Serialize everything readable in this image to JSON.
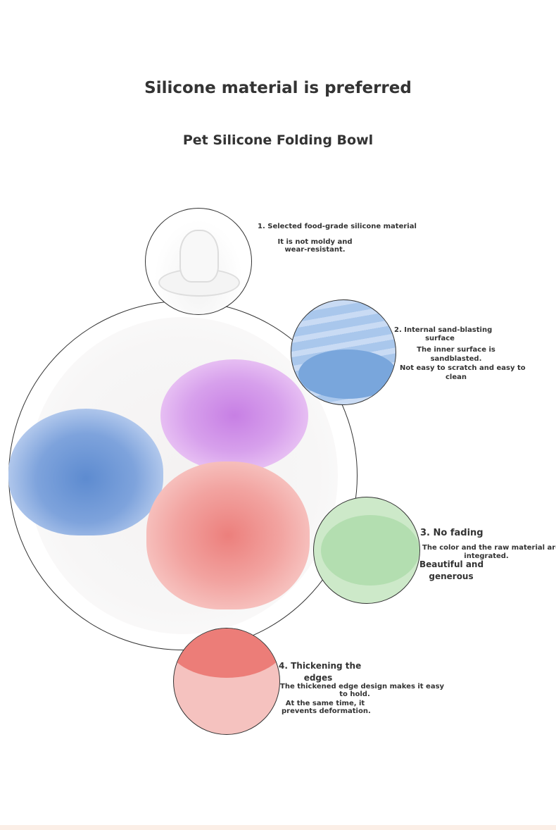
{
  "header": {
    "title": "Silicone material is preferred",
    "subtitle": "Pet Silicone Folding Bowl"
  },
  "features": [
    {
      "title": "1. Selected food-grade silicone material",
      "desc": [
        "It is not moldy and",
        "wear-resistant."
      ],
      "color": "#e8ecef"
    },
    {
      "title": [
        "2. Internal sand-blasting",
        "surface"
      ],
      "desc": [
        "The inner surface is",
        "sandblasted.",
        "Not easy to scratch and easy to",
        "clean"
      ],
      "color": "#8fb4e0"
    },
    {
      "title": "3. No fading",
      "desc": [
        "The color and the raw material are",
        "integrated.",
        "Beautiful and",
        "generous"
      ],
      "color": "#bfe3bd"
    },
    {
      "title": [
        "4. Thickening the",
        "edges"
      ],
      "desc": [
        "The thickened edge design makes it easy",
        "to hold.",
        "At the same time, it",
        "prevents deformation."
      ],
      "color": "#ef8a84"
    }
  ],
  "bowl_colors": {
    "blue": "#8fb0e0",
    "purple": "#dca6ee",
    "pink": "#f4b4b2"
  }
}
